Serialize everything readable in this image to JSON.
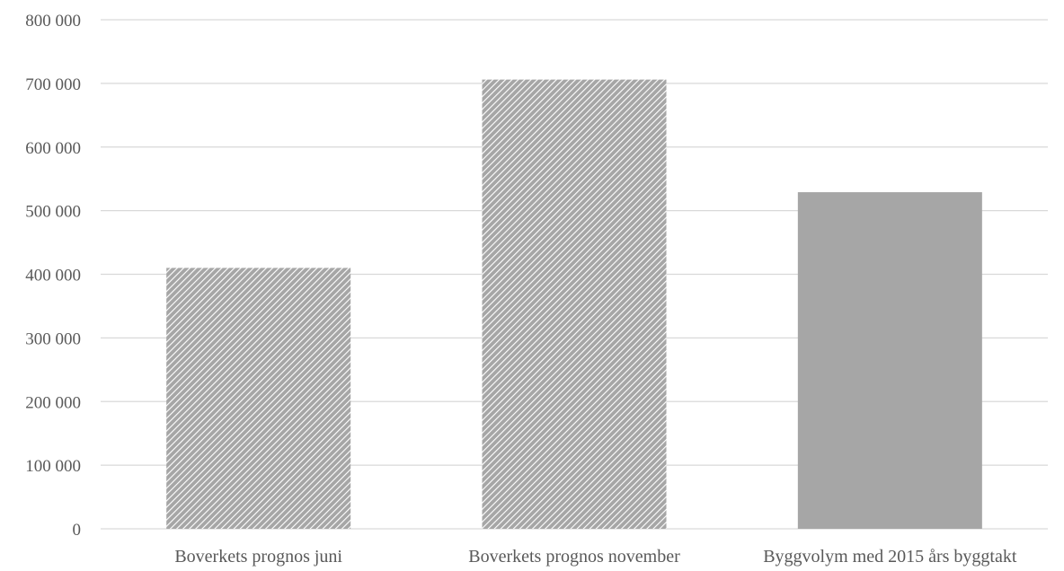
{
  "chart_data": {
    "type": "bar",
    "categories": [
      "Boverkets prognos juni",
      "Boverkets prognos november",
      "Byggvolym med 2015 års byggtakt"
    ],
    "values": [
      410000,
      706000,
      529000
    ],
    "bar_styles": [
      "hatched",
      "hatched",
      "solid"
    ],
    "colors": {
      "bar_fill": "#a6a6a6",
      "hatch_line": "#ffffff",
      "grid": "#d9d9d9",
      "text": "#595959"
    },
    "ylim": [
      0,
      800000
    ],
    "yticks": [
      0,
      100000,
      200000,
      300000,
      400000,
      500000,
      600000,
      700000,
      800000
    ],
    "ytick_labels": [
      "0",
      "100 000",
      "200 000",
      "300 000",
      "400 000",
      "500 000",
      "600 000",
      "700 000",
      "800 000"
    ],
    "grid": true,
    "title": "",
    "xlabel": "",
    "ylabel": ""
  }
}
